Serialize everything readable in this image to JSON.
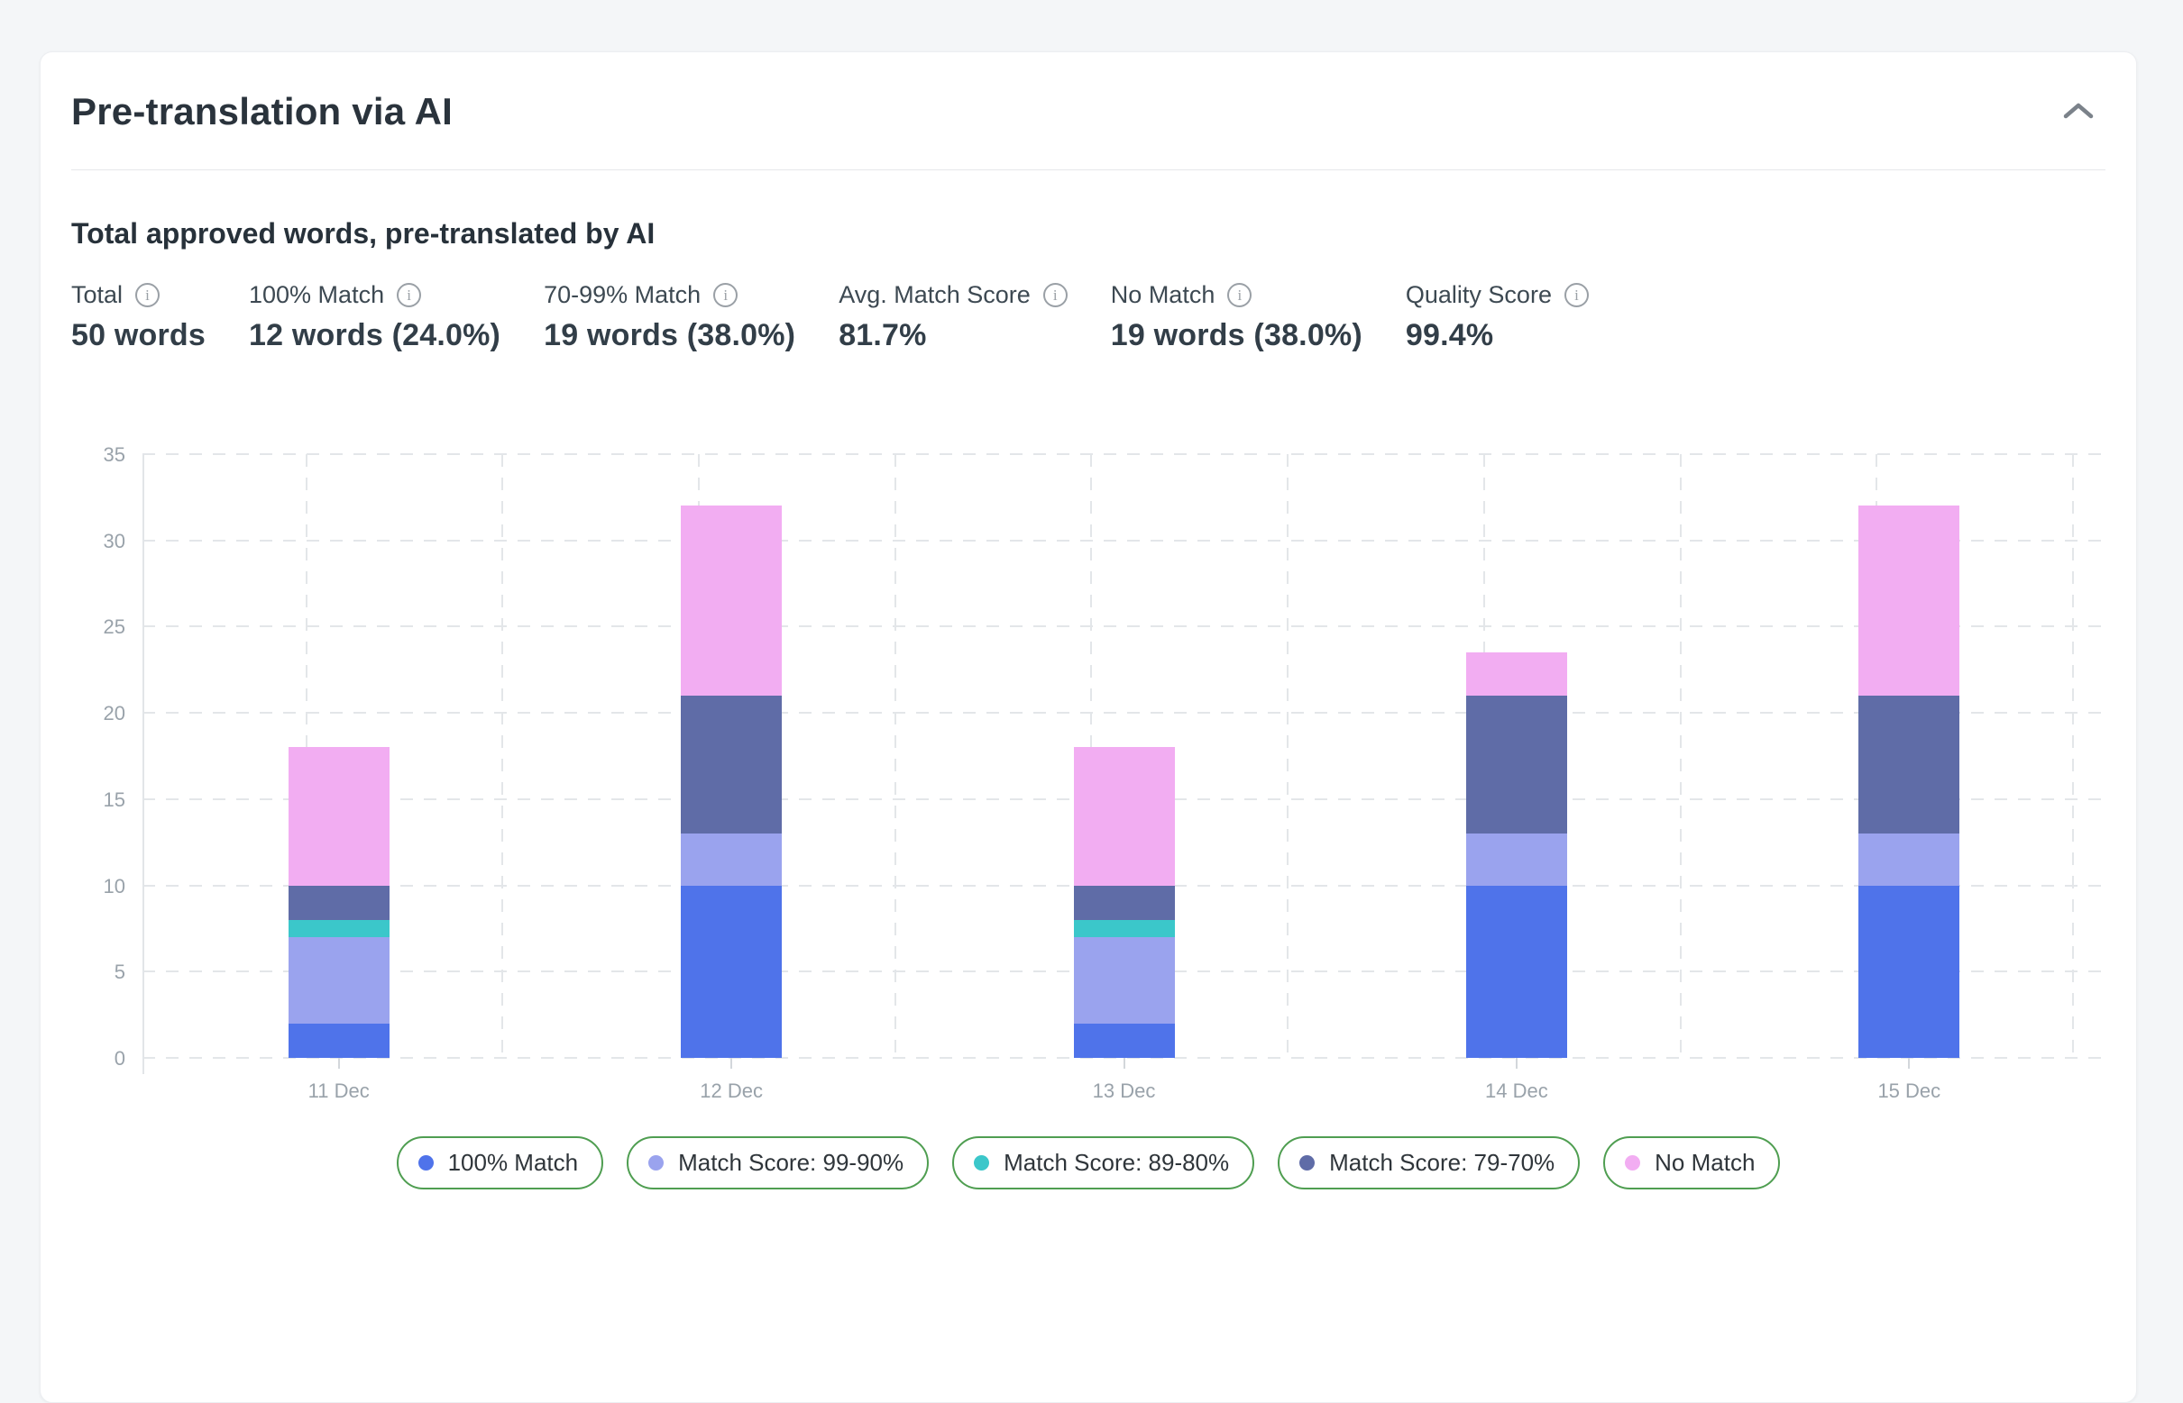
{
  "page": {
    "background": "#f4f6f8"
  },
  "card": {
    "title": "Pre-translation via AI",
    "collapse_icon": "chevron-up",
    "section_title": "Total approved words, pre-translated by AI",
    "stats": [
      {
        "label": "Total",
        "value": "50 words",
        "info_icon": "info-icon"
      },
      {
        "label": "100% Match",
        "value": "12 words (24.0%)",
        "info_icon": "info-icon"
      },
      {
        "label": "70-99% Match",
        "value": "19 words (38.0%)",
        "info_icon": "info-icon"
      },
      {
        "label": "Avg. Match Score",
        "value": "81.7%",
        "info_icon": "info-icon"
      },
      {
        "label": "No Match",
        "value": "19 words (38.0%)",
        "info_icon": "info-icon"
      },
      {
        "label": "Quality Score",
        "value": "99.4%",
        "info_icon": "info-icon"
      }
    ]
  },
  "chart_data": {
    "type": "bar",
    "stacked": true,
    "title": "",
    "xlabel": "",
    "ylabel": "",
    "categories": [
      "11 Dec",
      "12 Dec",
      "13 Dec",
      "14 Dec",
      "15 Dec"
    ],
    "series": [
      {
        "name": "100% Match",
        "color": "#4f73ea",
        "values": [
          2,
          10,
          2,
          10,
          10
        ]
      },
      {
        "name": "Match Score: 99-90%",
        "color": "#9aa3ee",
        "values": [
          5,
          3,
          5,
          3,
          3
        ]
      },
      {
        "name": "Match Score: 89-80%",
        "color": "#3bc7ca",
        "values": [
          1,
          0,
          1,
          0,
          0
        ]
      },
      {
        "name": "Match Score: 79-70%",
        "color": "#5f6ca7",
        "values": [
          2,
          8,
          2,
          8,
          8
        ]
      },
      {
        "name": "No Match",
        "color": "#f2adf2",
        "values": [
          8,
          11,
          8,
          2.5,
          11
        ]
      }
    ],
    "stack_totals": [
      18,
      32,
      18,
      23.5,
      32
    ],
    "ylim": [
      0,
      35
    ],
    "yticks": [
      0,
      5,
      10,
      15,
      20,
      25,
      30,
      35
    ],
    "grid": "dashed",
    "legend_position": "bottom",
    "legend_border_color": "#4f9e51",
    "axis_text_color": "#99a2aa"
  }
}
